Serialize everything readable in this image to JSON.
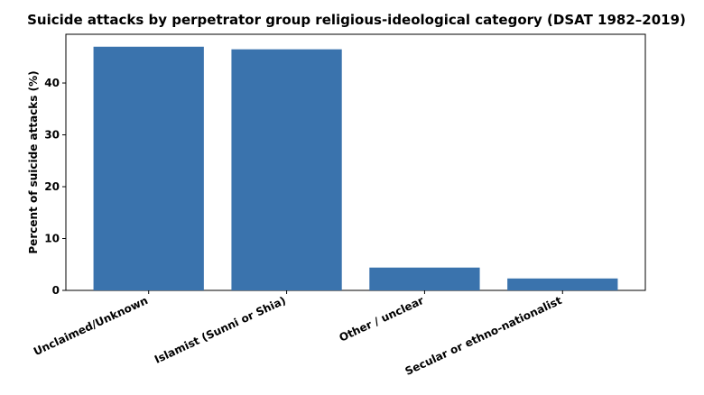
{
  "chart_data": {
    "type": "bar",
    "title": "Suicide attacks by perpetrator group religious-ideological category (DSAT 1982–2019)",
    "ylabel": "Percent of suicide attacks (%)",
    "categories": [
      "Unclaimed/Unknown",
      "Islamist (Sunni or Shia)",
      "Other / unclear",
      "Secular or ethno-nationalist"
    ],
    "values": [
      47.0,
      46.5,
      4.4,
      2.3
    ],
    "color": "#3a73ad",
    "ylim": [
      0,
      49.4
    ],
    "yticks": [
      0,
      10,
      20,
      30,
      40
    ],
    "grid": false
  }
}
